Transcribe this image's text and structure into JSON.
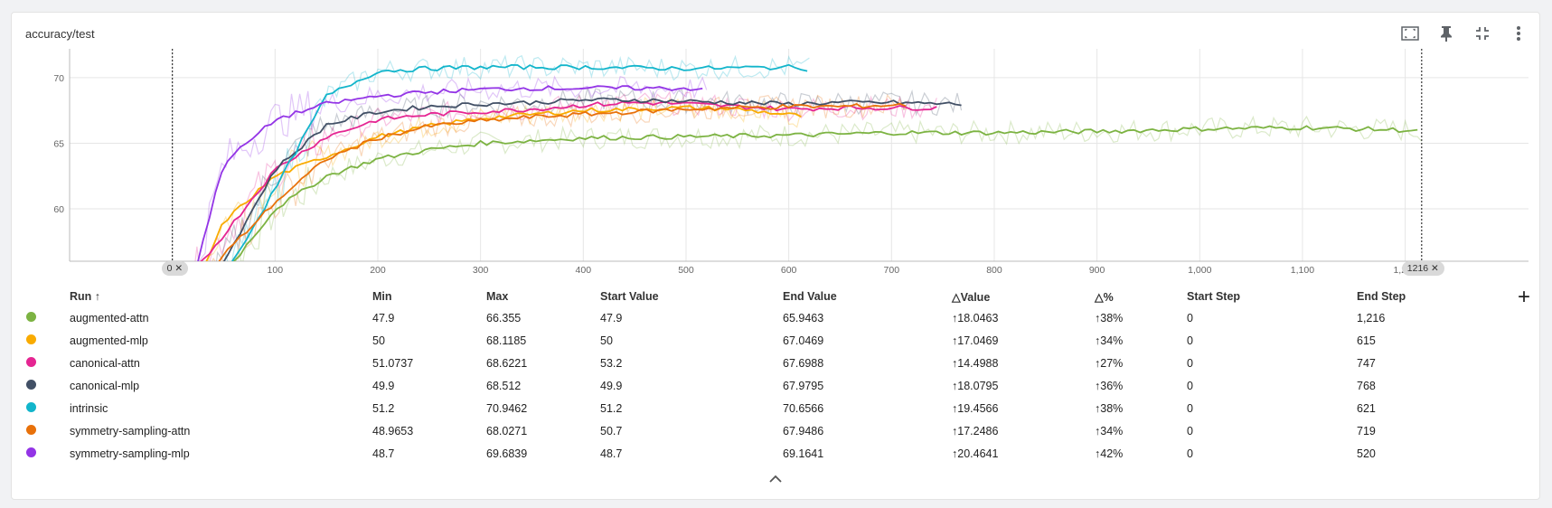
{
  "panel": {
    "title": "accuracy/test",
    "toolbar": {
      "fit_icon": "fit-domain-icon",
      "pin_icon": "pin-icon",
      "collapse_icon": "collapse-icon",
      "more_icon": "more-vert-icon"
    }
  },
  "chart_data": {
    "type": "line",
    "xlim": [
      -100,
      1320
    ],
    "ylim": [
      56,
      72.2
    ],
    "x_ticks": [
      "0",
      "100",
      "200",
      "300",
      "400",
      "500",
      "600",
      "700",
      "800",
      "900",
      "1,000",
      "1,100",
      "1,200"
    ],
    "y_ticks": [
      "60",
      "65",
      "70"
    ],
    "grid": true,
    "range_markers": {
      "start_label": "0",
      "end_label": "1216"
    },
    "series": [
      {
        "name": "augmented-attn",
        "color": "#7cb342",
        "x": [
          0,
          50,
          100,
          150,
          200,
          250,
          300,
          350,
          400,
          500,
          600,
          700,
          800,
          900,
          1000,
          1100,
          1200,
          1216
        ],
        "y": [
          47.9,
          55,
          60,
          62.5,
          63.8,
          64.5,
          65.0,
          65.2,
          65.4,
          65.5,
          65.6,
          65.8,
          65.8,
          65.9,
          66.1,
          66.2,
          66.0,
          65.9463
        ]
      },
      {
        "name": "augmented-mlp",
        "color": "#f9ab00",
        "x": [
          0,
          50,
          100,
          150,
          200,
          250,
          300,
          350,
          400,
          450,
          500,
          550,
          615
        ],
        "y": [
          50,
          59,
          62.5,
          64,
          65.5,
          66.3,
          66.9,
          67.2,
          67.5,
          67.6,
          67.7,
          67.6,
          67.0469
        ]
      },
      {
        "name": "canonical-attn",
        "color": "#e52592",
        "x": [
          0,
          50,
          100,
          150,
          200,
          250,
          300,
          350,
          400,
          450,
          500,
          550,
          600,
          650,
          700,
          747
        ],
        "y": [
          53.2,
          58,
          63,
          65.5,
          66.8,
          67.2,
          67.4,
          67.6,
          67.9,
          68.1,
          68.0,
          67.8,
          67.6,
          67.7,
          67.7,
          67.6988
        ]
      },
      {
        "name": "canonical-mlp",
        "color": "#425066",
        "x": [
          0,
          50,
          100,
          150,
          200,
          250,
          300,
          350,
          400,
          450,
          500,
          550,
          600,
          650,
          700,
          768
        ],
        "y": [
          49.9,
          56,
          63,
          66.4,
          67.4,
          67.8,
          68.0,
          68.1,
          68.3,
          68.3,
          68.2,
          68.1,
          68.0,
          68.1,
          68.1,
          67.9795
        ]
      },
      {
        "name": "intrinsic",
        "color": "#12b5cb",
        "x": [
          0,
          50,
          100,
          150,
          200,
          250,
          300,
          400,
          500,
          600,
          621
        ],
        "y": [
          51.2,
          54.8,
          61.5,
          68.6,
          70.5,
          70.7,
          70.8,
          70.8,
          70.7,
          70.8,
          70.6566
        ]
      },
      {
        "name": "symmetry-sampling-attn",
        "color": "#e8710a",
        "x": [
          0,
          50,
          100,
          150,
          200,
          250,
          300,
          350,
          400,
          450,
          500,
          550,
          600,
          650,
          700,
          719
        ],
        "y": [
          50.7,
          56.5,
          60.5,
          63.8,
          65.4,
          66.3,
          66.7,
          67.0,
          67.2,
          67.4,
          67.6,
          67.7,
          67.8,
          67.8,
          67.9,
          67.9486
        ]
      },
      {
        "name": "symmetry-sampling-mlp",
        "color": "#9334e6",
        "x": [
          0,
          50,
          100,
          150,
          200,
          250,
          300,
          350,
          400,
          450,
          520
        ],
        "y": [
          48.7,
          63.5,
          66.8,
          68.0,
          68.6,
          68.9,
          69.1,
          69.2,
          69.2,
          69.2,
          69.1641
        ]
      }
    ]
  },
  "table": {
    "headers": {
      "run": "Run ↑",
      "min": "Min",
      "max": "Max",
      "start_value": "Start Value",
      "end_value": "End Value",
      "delta_value": "△Value",
      "delta_pct": "△%",
      "start_step": "Start Step",
      "end_step": "End Step"
    },
    "rows": [
      {
        "run": "augmented-attn",
        "min": "47.9",
        "max": "66.355",
        "start_value": "47.9",
        "end_value": "65.9463",
        "delta_value": "↑18.0463",
        "delta_pct": "↑38%",
        "start_step": "0",
        "end_step": "1,216"
      },
      {
        "run": "augmented-mlp",
        "min": "50",
        "max": "68.1185",
        "start_value": "50",
        "end_value": "67.0469",
        "delta_value": "↑17.0469",
        "delta_pct": "↑34%",
        "start_step": "0",
        "end_step": "615"
      },
      {
        "run": "canonical-attn",
        "min": "51.0737",
        "max": "68.6221",
        "start_value": "53.2",
        "end_value": "67.6988",
        "delta_value": "↑14.4988",
        "delta_pct": "↑27%",
        "start_step": "0",
        "end_step": "747"
      },
      {
        "run": "canonical-mlp",
        "min": "49.9",
        "max": "68.512",
        "start_value": "49.9",
        "end_value": "67.9795",
        "delta_value": "↑18.0795",
        "delta_pct": "↑36%",
        "start_step": "0",
        "end_step": "768"
      },
      {
        "run": "intrinsic",
        "min": "51.2",
        "max": "70.9462",
        "start_value": "51.2",
        "end_value": "70.6566",
        "delta_value": "↑19.4566",
        "delta_pct": "↑38%",
        "start_step": "0",
        "end_step": "621"
      },
      {
        "run": "symmetry-sampling-attn",
        "min": "48.9653",
        "max": "68.0271",
        "start_value": "50.7",
        "end_value": "67.9486",
        "delta_value": "↑17.2486",
        "delta_pct": "↑34%",
        "start_step": "0",
        "end_step": "719"
      },
      {
        "run": "symmetry-sampling-mlp",
        "min": "48.7",
        "max": "69.6839",
        "start_value": "48.7",
        "end_value": "69.1641",
        "delta_value": "↑20.4641",
        "delta_pct": "↑42%",
        "start_step": "0",
        "end_step": "520"
      }
    ],
    "add_column_icon": "plus-icon",
    "collapse_icon": "chevron-up-icon"
  }
}
